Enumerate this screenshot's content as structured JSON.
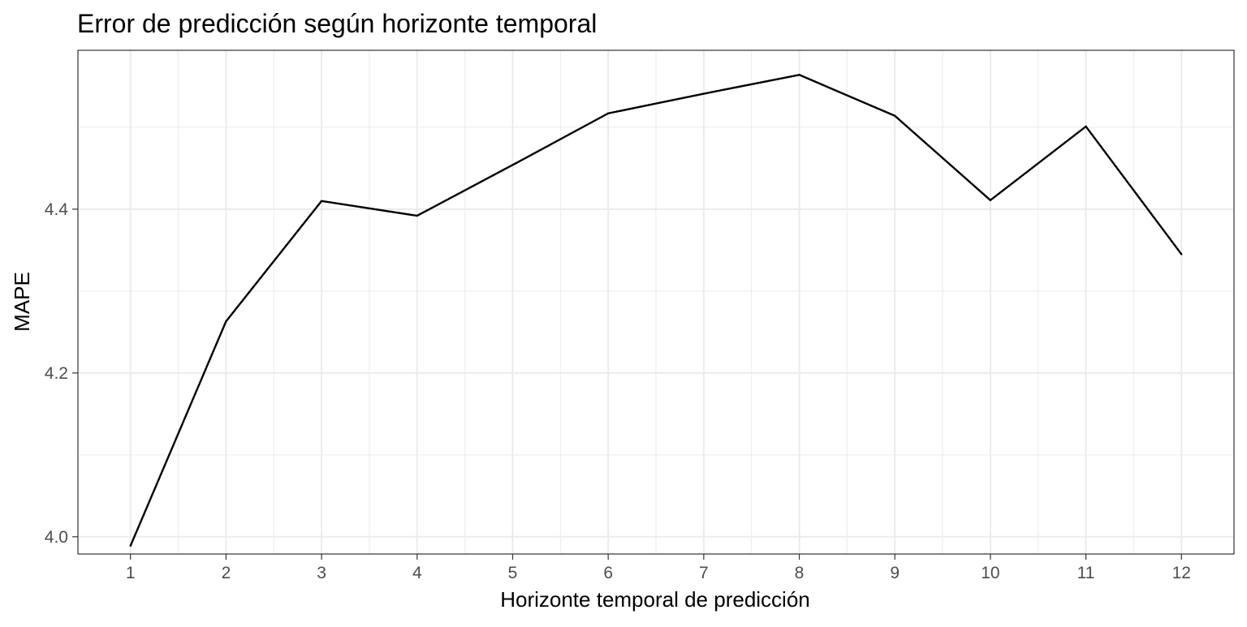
{
  "chart_data": {
    "type": "line",
    "title": "Error de predicción según horizonte temporal",
    "xlabel": "Horizonte temporal de predicción",
    "ylabel": "MAPE",
    "x": [
      1,
      2,
      3,
      4,
      5,
      6,
      7,
      8,
      9,
      10,
      11,
      12
    ],
    "series": [
      {
        "values": [
          3.989,
          4.263,
          4.41,
          4.392,
          4.454,
          4.517,
          4.541,
          4.564,
          4.514,
          4.411,
          4.501,
          4.345
        ]
      }
    ],
    "xlim": [
      0.45,
      12.55
    ],
    "ylim": [
      3.979,
      4.594
    ],
    "xticks": [
      1,
      2,
      3,
      4,
      5,
      6,
      7,
      8,
      9,
      10,
      11,
      12
    ],
    "yticks": [
      4.0,
      4.2,
      4.4
    ],
    "ytick_labels": [
      "4.0",
      "4.2",
      "4.4"
    ],
    "grid": true,
    "line_color": "#000000",
    "grid_color": "#ebebeb"
  }
}
